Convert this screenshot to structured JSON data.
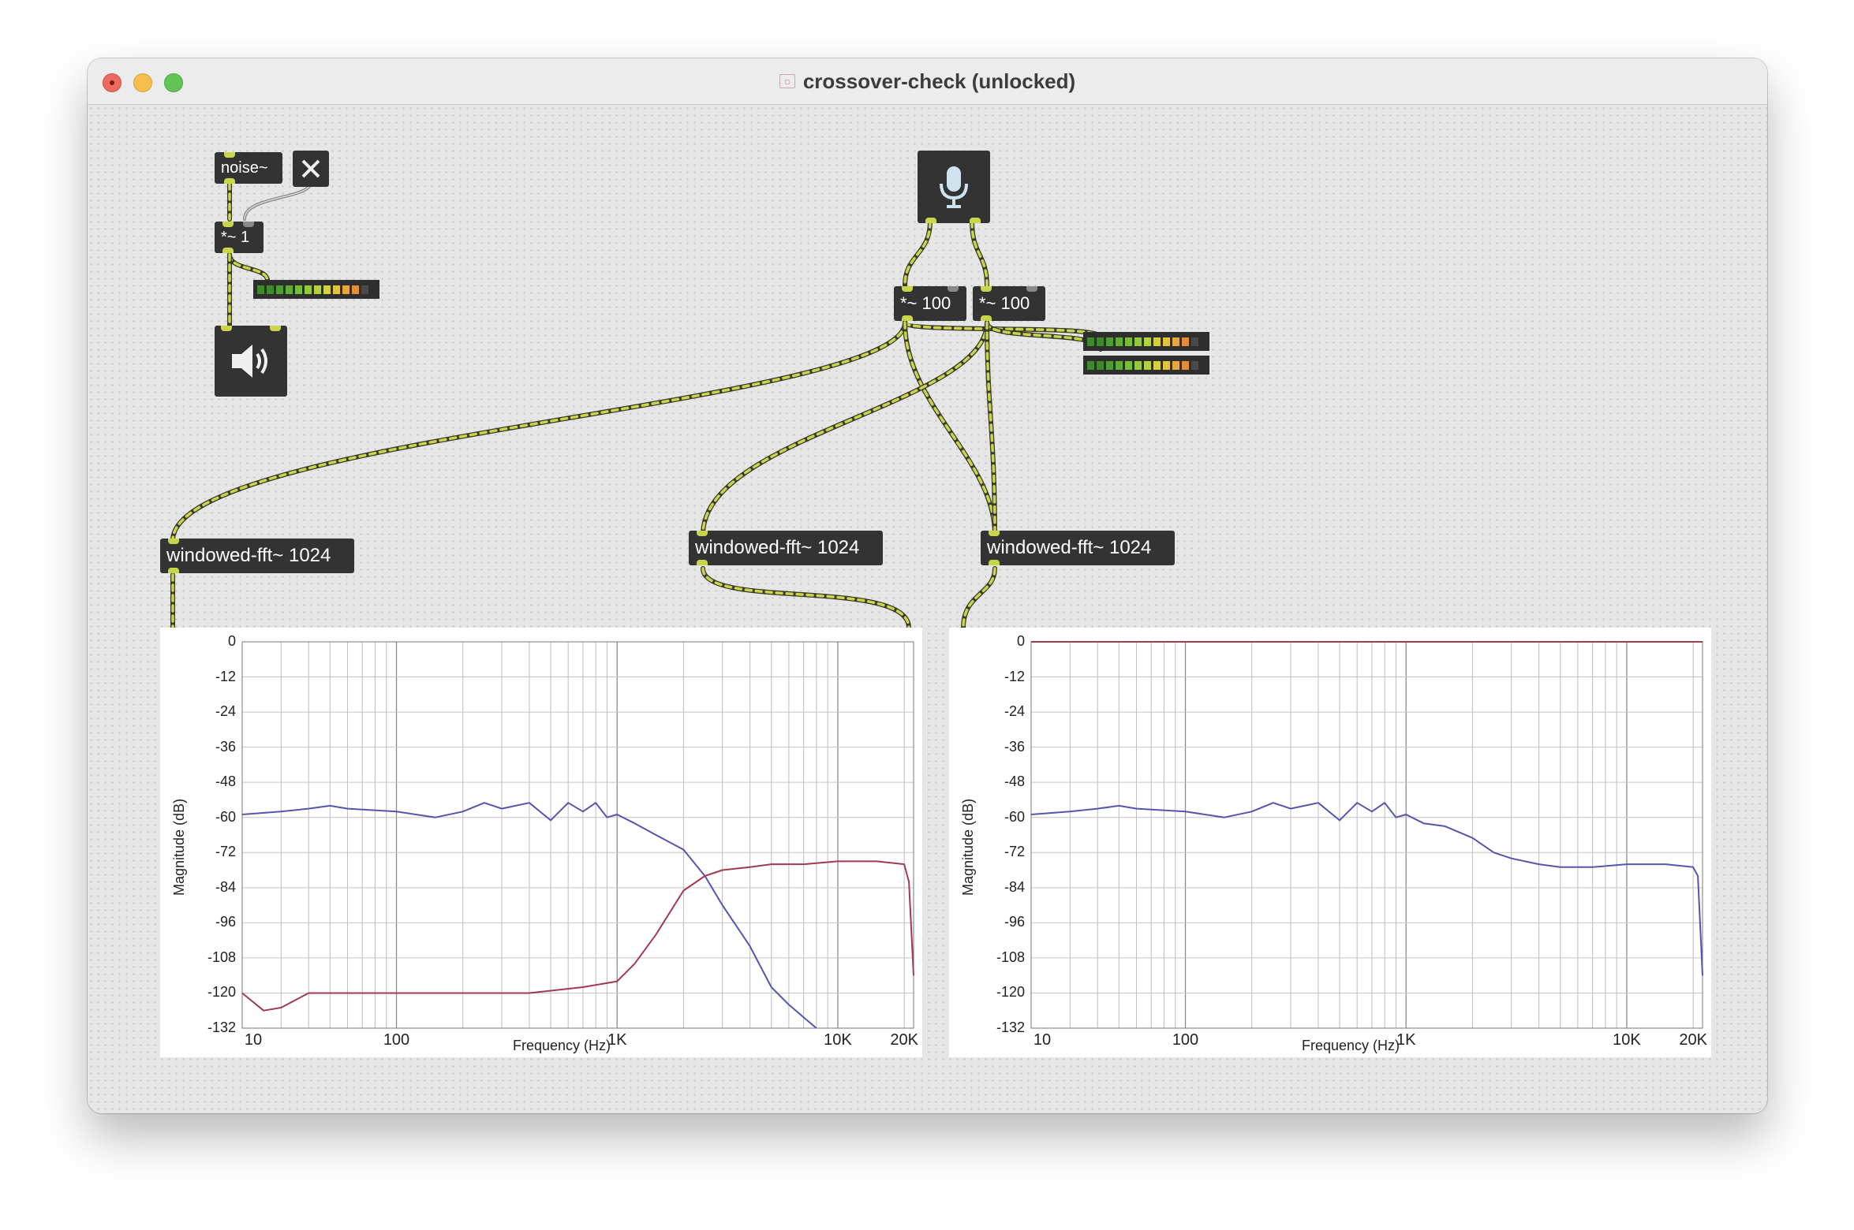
{
  "window": {
    "title": "crossover-check (unlocked)",
    "title_icon": "max-patcher-icon",
    "controls": [
      "close",
      "minimize",
      "zoom"
    ]
  },
  "patch": {
    "objects": {
      "noise": "noise~",
      "mult1": "*~ 1",
      "mult100_a": "*~ 100",
      "mult100_b": "*~ 100",
      "fft1": "windowed-fft~ 1024",
      "fft2": "windowed-fft~ 1024",
      "fft3": "windowed-fft~ 1024"
    },
    "icons": {
      "toggle": "close-x-icon",
      "dac": "speaker-icon",
      "adc": "microphone-icon"
    },
    "meter_levels": {
      "meter1": 0.85,
      "meter2": 0.85,
      "meter3": 0.85
    },
    "colors": {
      "object_bg": "#333333",
      "signal_cable": "#c9d54a",
      "series_blue": "#5555b0",
      "series_red": "#a03a52"
    }
  },
  "chart_data": [
    {
      "type": "line",
      "xscale": "log",
      "xlabel": "Frequency (Hz)",
      "ylabel": "Magnitude (dB)",
      "xlim": [
        20,
        22050
      ],
      "ylim": [
        -132,
        0
      ],
      "xticks": [
        "10",
        "100",
        "1K",
        "10K",
        "20K"
      ],
      "yticks": [
        "0",
        "-12",
        "-24",
        "-36",
        "-48",
        "-60",
        "-72",
        "-84",
        "-96",
        "-108",
        "-120",
        "-132"
      ],
      "series": [
        {
          "color": "#5555b0",
          "x": [
            20,
            30,
            40,
            50,
            60,
            100,
            150,
            200,
            250,
            300,
            400,
            500,
            600,
            700,
            800,
            900,
            1000,
            1200,
            1500,
            2000,
            2500,
            3000,
            4000,
            5000,
            6000,
            8000
          ],
          "y": [
            -59,
            -58,
            -57,
            -56,
            -57,
            -58,
            -60,
            -58,
            -55,
            -57,
            -55,
            -61,
            -55,
            -58,
            -55,
            -60,
            -59,
            -62,
            -66,
            -71,
            -80,
            -90,
            -104,
            -118,
            -124,
            -132
          ]
        },
        {
          "color": "#a03a52",
          "x": [
            20,
            25,
            30,
            40,
            50,
            100,
            200,
            400,
            700,
            1000,
            1200,
            1500,
            2000,
            2500,
            3000,
            4000,
            5000,
            7000,
            10000,
            15000,
            20000,
            21000,
            22050
          ],
          "y": [
            -120,
            -126,
            -125,
            -120,
            -120,
            -120,
            -120,
            -120,
            -118,
            -116,
            -110,
            -100,
            -85,
            -80,
            -78,
            -77,
            -76,
            -76,
            -75,
            -75,
            -76,
            -82,
            -114
          ]
        }
      ]
    },
    {
      "type": "line",
      "xscale": "log",
      "xlabel": "Frequency (Hz)",
      "ylabel": "Magnitude (dB)",
      "xlim": [
        20,
        22050
      ],
      "ylim": [
        -132,
        0
      ],
      "xticks": [
        "10",
        "100",
        "1K",
        "10K",
        "20K"
      ],
      "yticks": [
        "0",
        "-12",
        "-24",
        "-36",
        "-48",
        "-60",
        "-72",
        "-84",
        "-96",
        "-108",
        "-120",
        "-132"
      ],
      "series": [
        {
          "color": "#a03a52",
          "x": [
            20,
            22050
          ],
          "y": [
            0,
            0
          ]
        },
        {
          "color": "#5555b0",
          "x": [
            20,
            30,
            40,
            50,
            60,
            100,
            150,
            200,
            250,
            300,
            400,
            500,
            600,
            700,
            800,
            900,
            1000,
            1200,
            1500,
            2000,
            2500,
            3000,
            4000,
            5000,
            7000,
            10000,
            15000,
            20000,
            21000,
            22050
          ],
          "y": [
            -59,
            -58,
            -57,
            -56,
            -57,
            -58,
            -60,
            -58,
            -55,
            -57,
            -55,
            -61,
            -55,
            -58,
            -55,
            -60,
            -59,
            -62,
            -63,
            -67,
            -72,
            -74,
            -76,
            -77,
            -77,
            -76,
            -76,
            -77,
            -80,
            -114
          ]
        }
      ]
    }
  ]
}
